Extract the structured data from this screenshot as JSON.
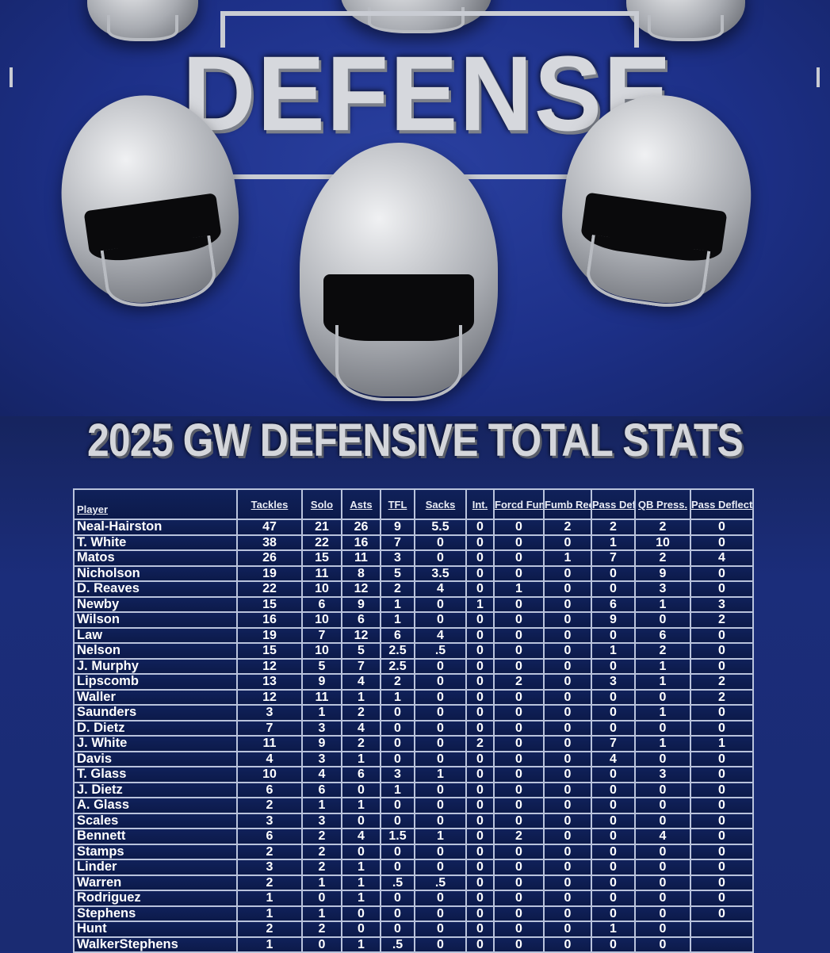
{
  "logo_text": "DEFENSE",
  "title": "2025 GW DEFENSIVE TOTAL STATS",
  "colors": {
    "background": "#1a2c78",
    "table_cell": "#0f1f55",
    "table_border": "#b9c3dc",
    "title": "#d4d6db"
  },
  "table": {
    "headers": [
      "Player",
      "Tackles",
      "Solo",
      "Asts",
      "TFL",
      "Sacks",
      "Int.",
      "Forcd Fumb",
      "Fumb Rec.",
      "Pass Def.",
      "QB Press.",
      "Pass Deflect"
    ],
    "rows": [
      [
        "Neal-Hairston",
        "47",
        "21",
        "26",
        "9",
        "5.5",
        "0",
        "0",
        "2",
        "2",
        "2",
        "0"
      ],
      [
        "T. White",
        "38",
        "22",
        "16",
        "7",
        "0",
        "0",
        "0",
        "0",
        "1",
        "10",
        "0"
      ],
      [
        "Matos",
        "26",
        "15",
        "11",
        "3",
        "0",
        "0",
        "0",
        "1",
        "7",
        "2",
        "4"
      ],
      [
        "Nicholson",
        "19",
        "11",
        "8",
        "5",
        "3.5",
        "0",
        "0",
        "0",
        "0",
        "9",
        "0"
      ],
      [
        "D. Reaves",
        "22",
        "10",
        "12",
        "2",
        "4",
        "0",
        "1",
        "0",
        "0",
        "3",
        "0"
      ],
      [
        "Newby",
        "15",
        "6",
        "9",
        "1",
        "0",
        "1",
        "0",
        "0",
        "6",
        "1",
        "3"
      ],
      [
        "Wilson",
        "16",
        "10",
        "6",
        "1",
        "0",
        "0",
        "0",
        "0",
        "9",
        "0",
        "2"
      ],
      [
        "Law",
        "19",
        "7",
        "12",
        "6",
        "4",
        "0",
        "0",
        "0",
        "0",
        "6",
        "0"
      ],
      [
        "Nelson",
        "15",
        "10",
        "5",
        "2.5",
        ".5",
        "0",
        "0",
        "0",
        "1",
        "2",
        "0"
      ],
      [
        "J. Murphy",
        "12",
        "5",
        "7",
        "2.5",
        "0",
        "0",
        "0",
        "0",
        "0",
        "1",
        "0"
      ],
      [
        "Lipscomb",
        "13",
        "9",
        "4",
        "2",
        "0",
        "0",
        "2",
        "0",
        "3",
        "1",
        "2"
      ],
      [
        "Waller",
        "12",
        "11",
        "1",
        "1",
        "0",
        "0",
        "0",
        "0",
        "0",
        "0",
        "2"
      ],
      [
        "Saunders",
        "3",
        "1",
        "2",
        "0",
        "0",
        "0",
        "0",
        "0",
        "0",
        "1",
        "0"
      ],
      [
        "D. Dietz",
        "7",
        "3",
        "4",
        "0",
        "0",
        "0",
        "0",
        "0",
        "0",
        "0",
        "0"
      ],
      [
        "J. White",
        "11",
        "9",
        "2",
        "0",
        "0",
        "2",
        "0",
        "0",
        "7",
        "1",
        "1"
      ],
      [
        "Davis",
        "4",
        "3",
        "1",
        "0",
        "0",
        "0",
        "0",
        "0",
        "4",
        "0",
        "0"
      ],
      [
        "T. Glass",
        "10",
        "4",
        "6",
        "3",
        "1",
        "0",
        "0",
        "0",
        "0",
        "3",
        "0"
      ],
      [
        "J. Dietz",
        "6",
        "6",
        "0",
        "1",
        "0",
        "0",
        "0",
        "0",
        "0",
        "0",
        "0"
      ],
      [
        "A. Glass",
        "2",
        "1",
        "1",
        "0",
        "0",
        "0",
        "0",
        "0",
        "0",
        "0",
        "0"
      ],
      [
        "Scales",
        "3",
        "3",
        "0",
        "0",
        "0",
        "0",
        "0",
        "0",
        "0",
        "0",
        "0"
      ],
      [
        "Bennett",
        "6",
        "2",
        "4",
        "1.5",
        "1",
        "0",
        "2",
        "0",
        "0",
        "4",
        "0"
      ],
      [
        "Stamps",
        "2",
        "2",
        "0",
        "0",
        "0",
        "0",
        "0",
        "0",
        "0",
        "0",
        "0"
      ],
      [
        "Linder",
        "3",
        "2",
        "1",
        "0",
        "0",
        "0",
        "0",
        "0",
        "0",
        "0",
        "0"
      ],
      [
        "Warren",
        "2",
        "1",
        "1",
        ".5",
        ".5",
        "0",
        "0",
        "0",
        "0",
        "0",
        "0"
      ],
      [
        "Rodriguez",
        "1",
        "0",
        "1",
        "0",
        "0",
        "0",
        "0",
        "0",
        "0",
        "0",
        "0"
      ],
      [
        "Stephens",
        "1",
        "1",
        "0",
        "0",
        "0",
        "0",
        "0",
        "0",
        "0",
        "0",
        "0"
      ],
      [
        "Hunt",
        "2",
        "2",
        "0",
        "0",
        "0",
        "0",
        "0",
        "0",
        "1",
        "0",
        ""
      ],
      [
        "WalkerStephens",
        "1",
        "0",
        "1",
        ".5",
        "0",
        "0",
        "0",
        "0",
        "0",
        "0",
        ""
      ]
    ]
  }
}
